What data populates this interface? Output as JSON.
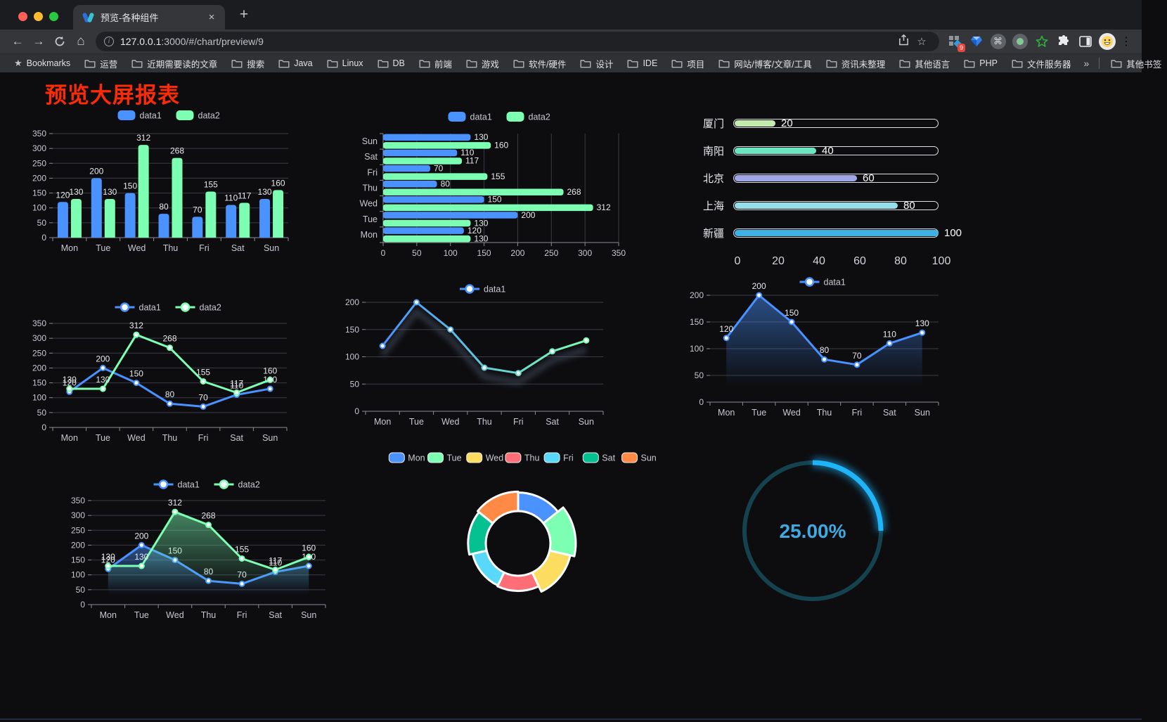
{
  "browser": {
    "tab_title": "预览-各种组件",
    "url_host": "127.0.0.1",
    "url_path": ":3000/#/chart/preview/9",
    "extension_badge": "9",
    "icons": {
      "back": "←",
      "forward": "→",
      "home": "⌂",
      "star": "☆",
      "kebab": "⋮",
      "tab_close": "×",
      "new_tab": "+",
      "bookmarks_star": "★",
      "cmd": "⌘",
      "info": "i",
      "chevron": "»"
    },
    "bookmarks_bar": {
      "root_label": "Bookmarks",
      "folders": [
        "运营",
        "近期需要读的文章",
        "搜索",
        "Java",
        "Linux",
        "DB",
        "前端",
        "游戏",
        "软件/硬件",
        "设计",
        "IDE",
        "项目",
        "网站/博客/文章/工具",
        "资讯未整理",
        "其他语言",
        "PHP",
        "文件服务器"
      ],
      "other_bookmarks_label": "其他书签"
    }
  },
  "page": {
    "title": "预览大屏报表",
    "title_color": "#fb2b07",
    "background": "#0d0d10",
    "axis_label_color": "#c6c7d1",
    "grid_color": "#3a3b46",
    "value_label_color": "#e8e8ec"
  },
  "chart_data": [
    {
      "id": "bar-vertical",
      "type": "bar",
      "categories": [
        "Mon",
        "Tue",
        "Wed",
        "Thu",
        "Fri",
        "Sat",
        "Sun"
      ],
      "series": [
        {
          "name": "data1",
          "color": "#4992ff",
          "values": [
            120,
            200,
            150,
            80,
            70,
            110,
            130
          ]
        },
        {
          "name": "data2",
          "color": "#7cffb2",
          "values": [
            130,
            130,
            312,
            268,
            155,
            117,
            160
          ]
        }
      ],
      "ylim": [
        0,
        350
      ],
      "yticks": [
        0,
        50,
        100,
        150,
        200,
        250,
        300,
        350
      ],
      "value_labels": true,
      "legend_position": "top",
      "grid": true
    },
    {
      "id": "bar-horizontal",
      "type": "bar-horizontal",
      "categories": [
        "Mon",
        "Tue",
        "Wed",
        "Thu",
        "Fri",
        "Sat",
        "Sun"
      ],
      "category_order_top_to_bottom": [
        "Sun",
        "Sat",
        "Fri",
        "Thu",
        "Wed",
        "Tue",
        "Mon"
      ],
      "series": [
        {
          "name": "data1",
          "color": "#4992ff",
          "values": [
            120,
            200,
            150,
            80,
            70,
            110,
            130
          ]
        },
        {
          "name": "data2",
          "color": "#7cffb2",
          "values": [
            130,
            130,
            312,
            268,
            155,
            117,
            160
          ]
        }
      ],
      "xlim": [
        0,
        350
      ],
      "xticks": [
        0,
        50,
        100,
        150,
        200,
        250,
        300,
        350
      ],
      "value_labels": true,
      "legend_position": "top",
      "grid": true
    },
    {
      "id": "capsule",
      "type": "capsule-bar",
      "categories": [
        "厦门",
        "南阳",
        "北京",
        "上海",
        "新疆"
      ],
      "values": [
        20,
        40,
        60,
        80,
        100
      ],
      "colors": [
        "#c4ebad",
        "#6be6c1",
        "#a0a7e6",
        "#96dee8",
        "#3fb1e3"
      ],
      "xlim": [
        0,
        100
      ],
      "xticks": [
        0,
        20,
        40,
        60,
        80,
        100
      ]
    },
    {
      "id": "line-two",
      "type": "line",
      "categories": [
        "Mon",
        "Tue",
        "Wed",
        "Thu",
        "Fri",
        "Sat",
        "Sun"
      ],
      "series": [
        {
          "name": "data1",
          "color": "#4992ff",
          "values": [
            120,
            200,
            150,
            80,
            70,
            110,
            130
          ]
        },
        {
          "name": "data2",
          "color": "#7cffb2",
          "values": [
            130,
            130,
            312,
            268,
            155,
            117,
            160
          ]
        }
      ],
      "ylim": [
        0,
        350
      ],
      "yticks": [
        0,
        50,
        100,
        150,
        200,
        250,
        300,
        350
      ],
      "value_labels": true,
      "legend_position": "top",
      "grid": true
    },
    {
      "id": "line-gradient",
      "type": "line",
      "categories": [
        "Mon",
        "Tue",
        "Wed",
        "Thu",
        "Fri",
        "Sat",
        "Sun"
      ],
      "series": [
        {
          "name": "data1",
          "gradient": [
            "#4992ff",
            "#7cffb2"
          ],
          "values": [
            120,
            200,
            150,
            80,
            70,
            110,
            130
          ]
        }
      ],
      "ylim": [
        0,
        200
      ],
      "yticks": [
        0,
        50,
        100,
        150,
        200
      ],
      "value_labels": false,
      "shadow": true,
      "legend_position": "top",
      "grid": true
    },
    {
      "id": "area-one",
      "type": "area",
      "categories": [
        "Mon",
        "Tue",
        "Wed",
        "Thu",
        "Fri",
        "Sat",
        "Sun"
      ],
      "series": [
        {
          "name": "data1",
          "color": "#4992ff",
          "area": true,
          "values": [
            120,
            200,
            150,
            80,
            70,
            110,
            130
          ]
        }
      ],
      "ylim": [
        0,
        200
      ],
      "yticks": [
        0,
        50,
        100,
        150,
        200
      ],
      "value_labels": true,
      "legend_position": "top",
      "grid": true
    },
    {
      "id": "area-two",
      "type": "area",
      "categories": [
        "Mon",
        "Tue",
        "Wed",
        "Thu",
        "Fri",
        "Sat",
        "Sun"
      ],
      "series": [
        {
          "name": "data1",
          "color": "#4992ff",
          "area": true,
          "values": [
            120,
            200,
            150,
            80,
            70,
            110,
            130
          ]
        },
        {
          "name": "data2",
          "color": "#7cffb2",
          "area": true,
          "values": [
            130,
            130,
            312,
            268,
            155,
            117,
            160
          ]
        }
      ],
      "ylim": [
        0,
        350
      ],
      "yticks": [
        0,
        50,
        100,
        150,
        200,
        250,
        300,
        350
      ],
      "value_labels": true,
      "legend_position": "top",
      "grid": true
    },
    {
      "id": "pie-rose",
      "type": "pie",
      "subtype": "rose-donut",
      "legend_position": "top",
      "categories": [
        "Mon",
        "Tue",
        "Wed",
        "Thu",
        "Fri",
        "Sat",
        "Sun"
      ],
      "values": [
        120,
        200,
        150,
        80,
        70,
        110,
        130
      ],
      "colors": [
        "#4992ff",
        "#7cffb2",
        "#fddd60",
        "#ff6e76",
        "#58d9f9",
        "#05c091",
        "#ff8a45"
      ],
      "border_color": "#ffffff"
    },
    {
      "id": "gauge-percent",
      "type": "gauge",
      "value": 25,
      "max": 100,
      "label": "25.00%",
      "arc_color": "#1fb3f8",
      "track_color": "#15424f",
      "text_color": "#3fa9e1"
    }
  ]
}
